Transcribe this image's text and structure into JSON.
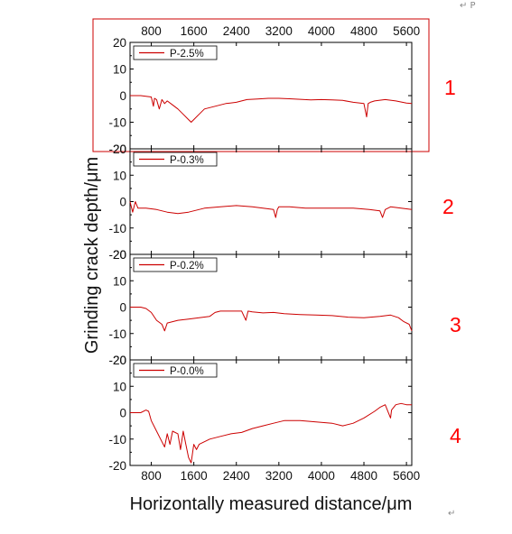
{
  "figure": {
    "xlabel": "Horizontally measured distance/μm",
    "ylabel": "Grinding crack depth/μm",
    "corner_mark": "↵ P",
    "footer_mark": "↵"
  },
  "colors": {
    "series": "#cc0000",
    "highlight_box": "#cc0000",
    "panel_number": "#ff0000",
    "axis": "#000000"
  },
  "chart_data": [
    {
      "type": "line",
      "panel_number": "1",
      "highlighted": true,
      "xticks": [
        "800",
        "1600",
        "2400",
        "3200",
        "4000",
        "4800",
        "5600"
      ],
      "xticks_position": "top",
      "yticks": [
        "20",
        "10",
        "0",
        "-10",
        "-20"
      ],
      "xlim": [
        400,
        5700
      ],
      "ylim": [
        -20,
        20
      ],
      "series": [
        {
          "name": "P-2.5%",
          "x": [
            400,
            600,
            800,
            840,
            860,
            900,
            950,
            1000,
            1050,
            1100,
            1200,
            1300,
            1400,
            1500,
            1550,
            1600,
            1700,
            1800,
            2000,
            2200,
            2400,
            2600,
            2800,
            3000,
            3200,
            3400,
            3600,
            3800,
            4000,
            4200,
            4400,
            4600,
            4800,
            4850,
            4880,
            4920,
            5000,
            5200,
            5400,
            5600,
            5700
          ],
          "y": [
            0,
            0,
            -0.5,
            -4,
            -1,
            -1.5,
            -5,
            -1.5,
            -3,
            -2,
            -3.5,
            -5,
            -7,
            -9,
            -10,
            -9,
            -7,
            -5,
            -4,
            -3,
            -2.5,
            -1.5,
            -1.3,
            -1,
            -1,
            -1.2,
            -1.4,
            -1.6,
            -1.5,
            -1.6,
            -1.8,
            -2.5,
            -3,
            -8,
            -3,
            -2.5,
            -2,
            -1.5,
            -2,
            -2.8,
            -3
          ]
        }
      ],
      "legend_position": "top-left"
    },
    {
      "type": "line",
      "panel_number": "2",
      "highlighted": false,
      "yticks": [
        "20",
        "10",
        "0",
        "-10",
        "-20"
      ],
      "xlim": [
        400,
        5700
      ],
      "ylim": [
        -20,
        20
      ],
      "series": [
        {
          "name": "P-0.3%",
          "x": [
            400,
            450,
            500,
            550,
            700,
            900,
            1100,
            1300,
            1500,
            1800,
            2100,
            2400,
            2700,
            2900,
            3100,
            3140,
            3170,
            3200,
            3400,
            3700,
            4000,
            4300,
            4600,
            4900,
            5100,
            5150,
            5200,
            5300,
            5500,
            5700
          ],
          "y": [
            0,
            -4,
            0,
            -2.5,
            -2.5,
            -3,
            -4,
            -4.5,
            -4,
            -2.5,
            -2,
            -1.5,
            -2,
            -2.5,
            -3,
            -6,
            -3,
            -2,
            -2,
            -2.5,
            -2.5,
            -2.5,
            -2.5,
            -3,
            -3.5,
            -6,
            -3,
            -2,
            -2.5,
            -3
          ]
        }
      ],
      "legend_position": "top-left"
    },
    {
      "type": "line",
      "panel_number": "3",
      "highlighted": false,
      "yticks": [
        "20",
        "10",
        "0",
        "-10",
        "-20"
      ],
      "xlim": [
        400,
        5700
      ],
      "ylim": [
        -20,
        20
      ],
      "series": [
        {
          "name": "P-0.2%",
          "x": [
            400,
            600,
            700,
            800,
            900,
            1000,
            1050,
            1100,
            1300,
            1500,
            1700,
            1900,
            2000,
            2100,
            2300,
            2500,
            2580,
            2620,
            2700,
            2900,
            3100,
            3300,
            3600,
            3900,
            4200,
            4500,
            4800,
            5100,
            5300,
            5450,
            5550,
            5650,
            5700
          ],
          "y": [
            0,
            0,
            -0.5,
            -2,
            -5,
            -6.5,
            -9,
            -6,
            -5,
            -4.5,
            -4,
            -3.5,
            -2,
            -1.5,
            -1.5,
            -1.5,
            -5,
            -1.5,
            -1.8,
            -2.2,
            -2,
            -2.5,
            -2.8,
            -3,
            -3.2,
            -3.8,
            -4,
            -3.5,
            -3,
            -4,
            -5.5,
            -6.5,
            -9
          ]
        }
      ],
      "legend_position": "top-left"
    },
    {
      "type": "line",
      "panel_number": "4",
      "highlighted": false,
      "xticks": [
        "800",
        "1600",
        "2400",
        "3200",
        "4000",
        "4800",
        "5600"
      ],
      "xticks_position": "bottom",
      "yticks": [
        "20",
        "10",
        "0",
        "-10",
        "-20"
      ],
      "xlim": [
        400,
        5700
      ],
      "ylim": [
        -20,
        20
      ],
      "series": [
        {
          "name": "P-0.0%",
          "x": [
            400,
            600,
            700,
            750,
            800,
            900,
            1000,
            1050,
            1100,
            1150,
            1200,
            1300,
            1350,
            1400,
            1450,
            1500,
            1550,
            1600,
            1650,
            1700,
            1900,
            2100,
            2300,
            2500,
            2700,
            2900,
            3100,
            3300,
            3600,
            3900,
            4200,
            4400,
            4600,
            4800,
            5000,
            5100,
            5200,
            5280,
            5300,
            5320,
            5400,
            5500,
            5600,
            5700
          ],
          "y": [
            0,
            0,
            1,
            0.5,
            -3,
            -7,
            -11,
            -13,
            -8,
            -12,
            -7,
            -8,
            -14,
            -7,
            -12,
            -17,
            -19,
            -12,
            -14,
            -12,
            -10,
            -9,
            -8,
            -7.5,
            -6,
            -5,
            -4,
            -3,
            -3,
            -3.5,
            -4,
            -5,
            -4,
            -2,
            0.5,
            2,
            3,
            -1,
            -2,
            1,
            3,
            3.5,
            3,
            3
          ]
        }
      ],
      "legend_position": "top-left"
    }
  ]
}
